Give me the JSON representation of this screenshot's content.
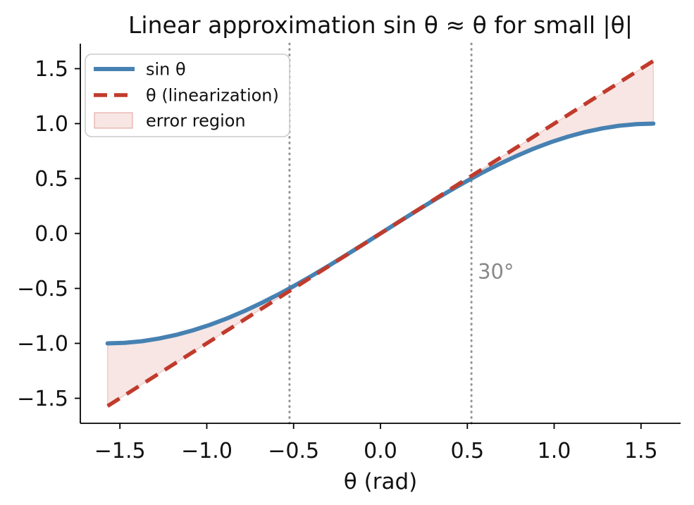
{
  "chart_data": {
    "type": "line",
    "title": "Linear approximation sin θ ≈ θ for small |θ|",
    "xlabel": "θ (rad)",
    "ylabel": "",
    "xlim": [
      -1.7279,
      1.7279
    ],
    "ylim": [
      -1.7279,
      1.7279
    ],
    "grid": false,
    "x_ticks": {
      "values": [
        -1.5,
        -1.0,
        -0.5,
        0.0,
        0.5,
        1.0,
        1.5
      ],
      "labels": [
        "−1.5",
        "−1.0",
        "−0.5",
        "0.0",
        "0.5",
        "1.0",
        "1.5"
      ]
    },
    "y_ticks": {
      "values": [
        -1.5,
        -1.0,
        -0.5,
        0.0,
        0.5,
        1.0,
        1.5
      ],
      "labels": [
        "−1.5",
        "−1.0",
        "−0.5",
        "0.0",
        "0.5",
        "1.0",
        "1.5"
      ]
    },
    "series": [
      {
        "name": "sin θ",
        "color": "#4681b2",
        "style": "solid",
        "x": [
          -1.5708,
          -1.4726,
          -1.3744,
          -1.2763,
          -1.1781,
          -1.0799,
          -0.9817,
          -0.8836,
          -0.7854,
          -0.6872,
          -0.589,
          -0.4909,
          -0.3927,
          -0.2945,
          -0.1963,
          -0.0982,
          0,
          0.0982,
          0.1963,
          0.2945,
          0.3927,
          0.4909,
          0.589,
          0.6872,
          0.7854,
          0.8836,
          0.9817,
          1.0799,
          1.1781,
          1.2763,
          1.3744,
          1.4726,
          1.5708
        ],
        "y": [
          -1,
          -0.9952,
          -0.9808,
          -0.9569,
          -0.9239,
          -0.8819,
          -0.8315,
          -0.773,
          -0.7071,
          -0.6344,
          -0.5556,
          -0.4714,
          -0.3827,
          -0.2903,
          -0.1951,
          -0.098,
          0,
          0.098,
          0.1951,
          0.2903,
          0.3827,
          0.4714,
          0.5556,
          0.6344,
          0.7071,
          0.773,
          0.8315,
          0.8819,
          0.9239,
          0.9569,
          0.9808,
          0.9952,
          1
        ]
      },
      {
        "name": "θ (linearization)",
        "color": "#c13b2c",
        "style": "dashed",
        "x": [
          -1.5708,
          1.5708
        ],
        "y": [
          -1.5708,
          1.5708
        ]
      }
    ],
    "error_region": {
      "label": "error region",
      "between": [
        "θ (linearization)",
        "sin θ"
      ],
      "fill": "#c13b2c",
      "fill_opacity": 0.13,
      "edge_opacity": 0.2
    },
    "reference_lines": {
      "values": [
        -0.5236,
        0.5236
      ],
      "color": "#949494",
      "style": "dotted"
    },
    "annotation": {
      "text": "30°",
      "x": 0.56,
      "y": -0.41,
      "color": "#898989"
    },
    "legend": {
      "position": "upper left",
      "entries": [
        {
          "label": "sin θ",
          "swatch": "solid-line",
          "color": "#4681b2"
        },
        {
          "label": "θ (linearization)",
          "swatch": "dashed-line",
          "color": "#c13b2c"
        },
        {
          "label": "error region",
          "swatch": "patch",
          "color": "#c13b2c"
        }
      ]
    },
    "axis_color": "#000000"
  }
}
